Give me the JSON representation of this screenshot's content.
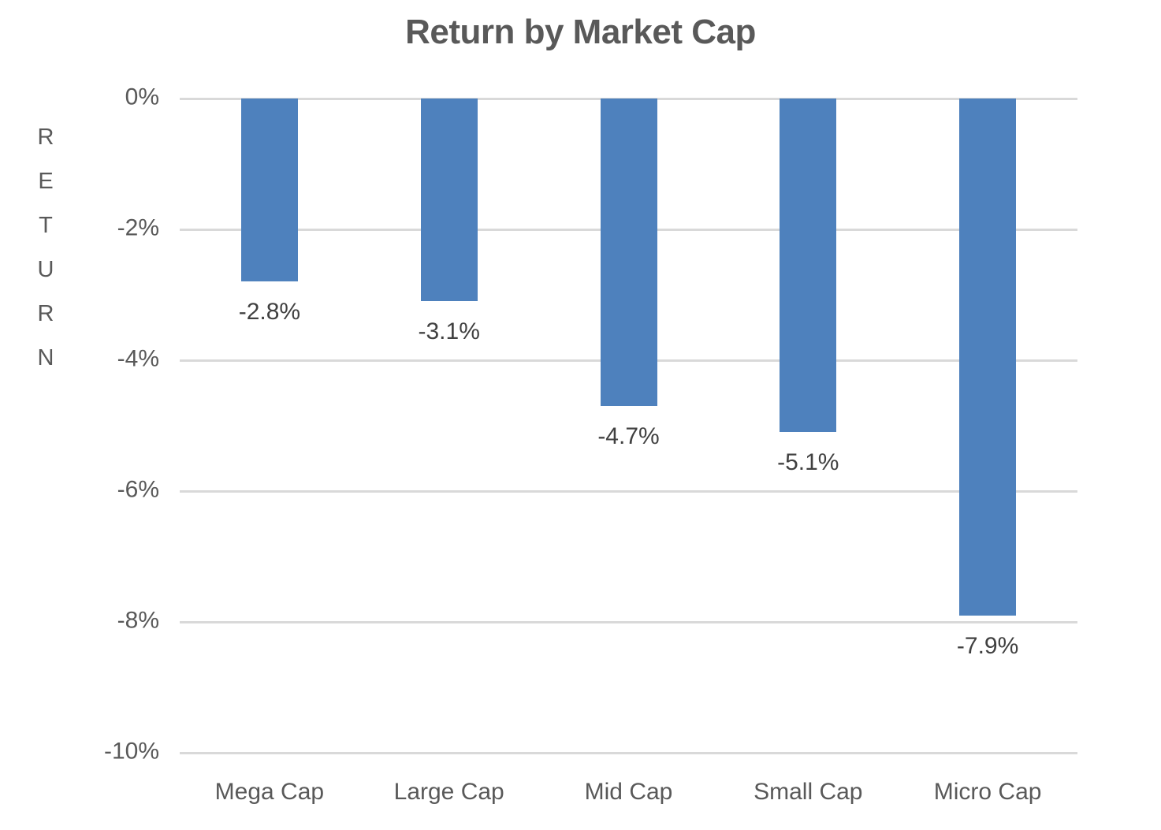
{
  "chart_data": {
    "type": "bar",
    "title": "Return by Market Cap",
    "categories": [
      "Mega Cap",
      "Large Cap",
      "Mid Cap",
      "Small Cap",
      "Micro Cap"
    ],
    "values": [
      -2.8,
      -3.1,
      -4.7,
      -5.1,
      -7.9
    ],
    "data_labels": [
      "-2.8%",
      "-3.1%",
      "-4.7%",
      "-5.1%",
      "-7.9%"
    ],
    "xlabel": "",
    "ylabel": "RETURN",
    "ylim": [
      -10,
      0
    ],
    "ytick_values": [
      0,
      -2,
      -4,
      -6,
      -8,
      -10
    ],
    "ytick_labels": [
      "0%",
      "-2%",
      "-4%",
      "-6%",
      "-8%",
      "-10%"
    ],
    "grid": true,
    "legend": "none",
    "colors": {
      "bar": "#4E81BD",
      "gridline": "#D9D9D9",
      "title_text": "#595959",
      "axis_text": "#595959",
      "data_label_text": "#404040",
      "background": "#FFFFFF"
    }
  }
}
